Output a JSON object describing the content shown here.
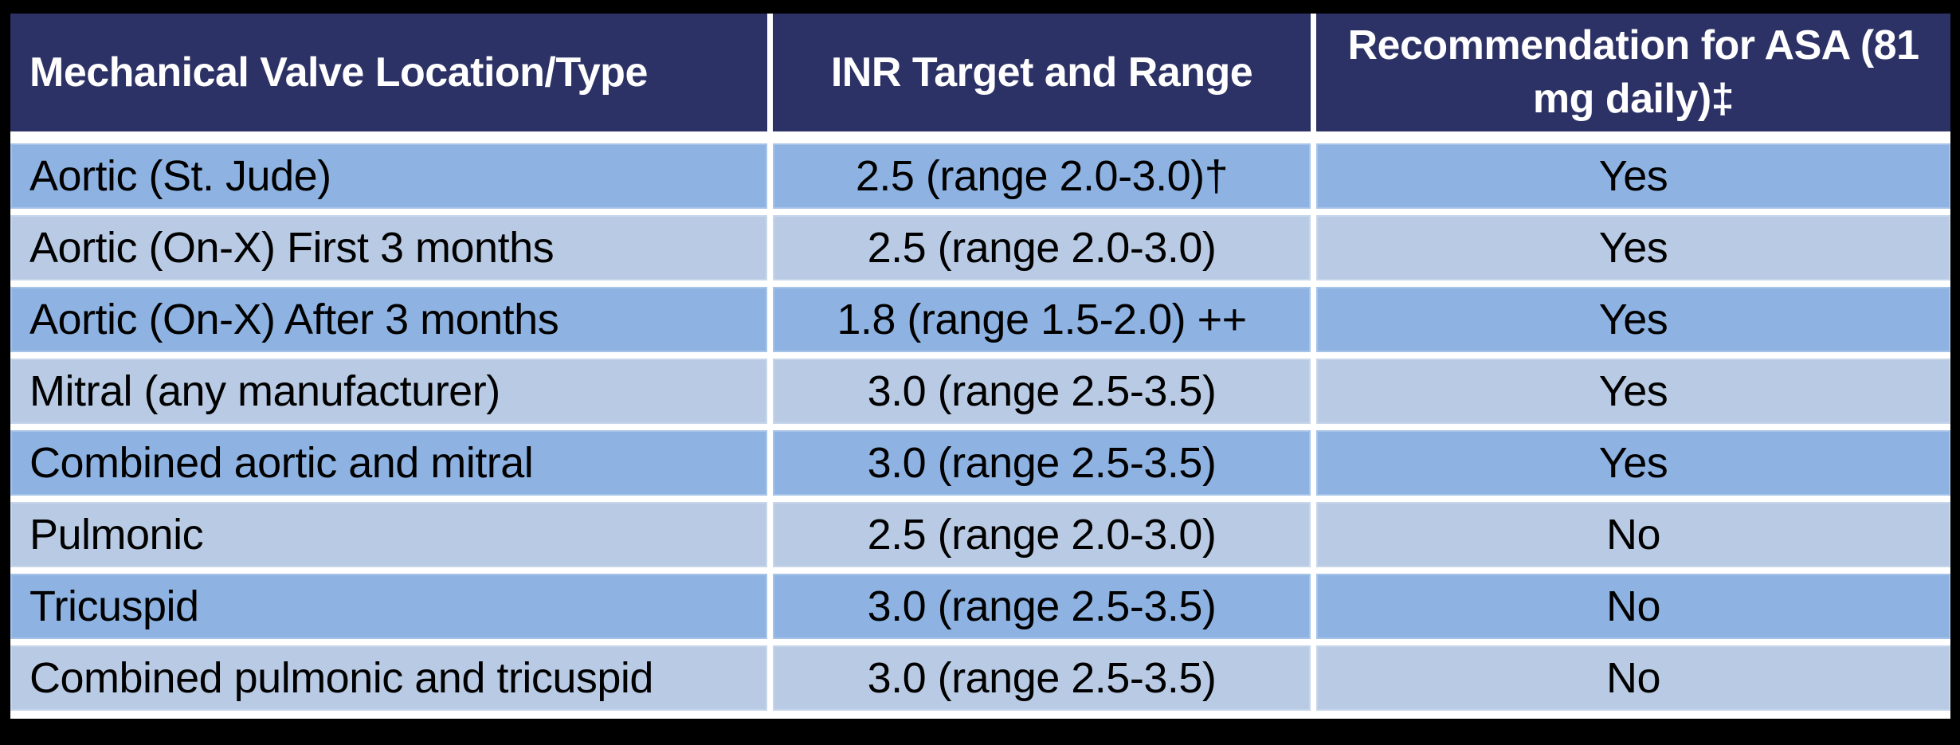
{
  "colors": {
    "canvas_bg": "#000000",
    "separator": "#FFFFFF",
    "header_bg": "#2D3266",
    "header_text": "#FFFFFF",
    "row_odd_bg": "#8EB3E2",
    "row_even_bg": "#B9CBE4",
    "body_text": "#000000"
  },
  "table": {
    "header": {
      "col1": "Mechanical Valve Location/Type",
      "col2": "INR Target and Range",
      "col3": "Recommendation for ASA (81 mg daily)‡"
    },
    "rows": [
      {
        "location": "Aortic (St. Jude)",
        "inr": "2.5 (range 2.0-3.0)†",
        "asa": "Yes"
      },
      {
        "location": "Aortic (On-X) First 3 months",
        "inr": "2.5 (range 2.0-3.0)",
        "asa": "Yes"
      },
      {
        "location": "Aortic (On-X) After 3 months",
        "inr": "1.8 (range 1.5-2.0) ++",
        "asa": "Yes"
      },
      {
        "location": "Mitral (any manufacturer)",
        "inr": "3.0 (range 2.5-3.5)",
        "asa": "Yes"
      },
      {
        "location": "Combined aortic and mitral",
        "inr": "3.0 (range 2.5-3.5)",
        "asa": "Yes"
      },
      {
        "location": "Pulmonic",
        "inr": "2.5 (range 2.0-3.0)",
        "asa": "No"
      },
      {
        "location": "Tricuspid",
        "inr": "3.0 (range 2.5-3.5)",
        "asa": "No"
      },
      {
        "location": "Combined pulmonic and tricuspid",
        "inr": "3.0 (range 2.5-3.5)",
        "asa": "No"
      }
    ],
    "footnote_symbols": {
      "header_asa": "‡",
      "aortic_st_jude_inr": "†",
      "aortic_onx_after_inr": "++"
    }
  }
}
